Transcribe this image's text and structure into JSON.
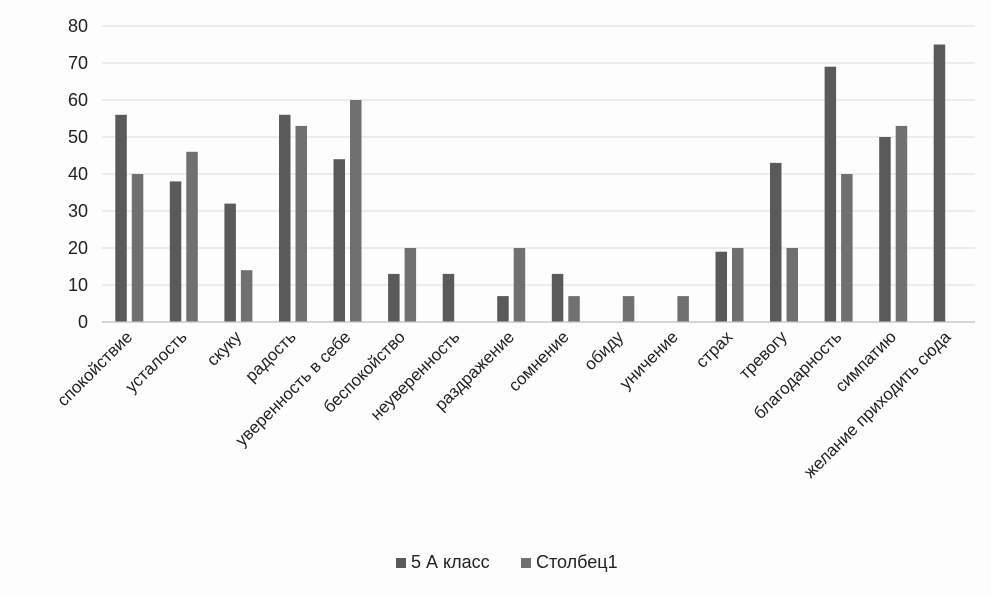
{
  "chart_data": {
    "type": "bar",
    "categories": [
      "спокойствие",
      "усталость",
      "скуку",
      "радость",
      "уверенность в себе",
      "беспокойство",
      "неуверенность",
      "раздражение",
      "сомнение",
      "обиду",
      "уничение",
      "страх",
      "тревогу",
      "благодарность",
      "симпатию",
      "желание приходить сюда"
    ],
    "series": [
      {
        "name": "5 А класс",
        "color": "#5a5a5a",
        "values": [
          56,
          38,
          32,
          56,
          44,
          13,
          13,
          7,
          13,
          0,
          0,
          19,
          43,
          69,
          50,
          75
        ]
      },
      {
        "name": "Столбец1",
        "color": "#707070",
        "values": [
          40,
          46,
          14,
          53,
          60,
          20,
          0,
          20,
          7,
          7,
          7,
          20,
          20,
          40,
          53,
          0
        ]
      }
    ],
    "ylim": [
      0,
      80
    ],
    "yticks": [
      "0",
      "10",
      "20",
      "30",
      "40",
      "50",
      "60",
      "70",
      "80"
    ],
    "grid": true,
    "legend_position": "bottom",
    "title": "",
    "xlabel": "",
    "ylabel": ""
  }
}
